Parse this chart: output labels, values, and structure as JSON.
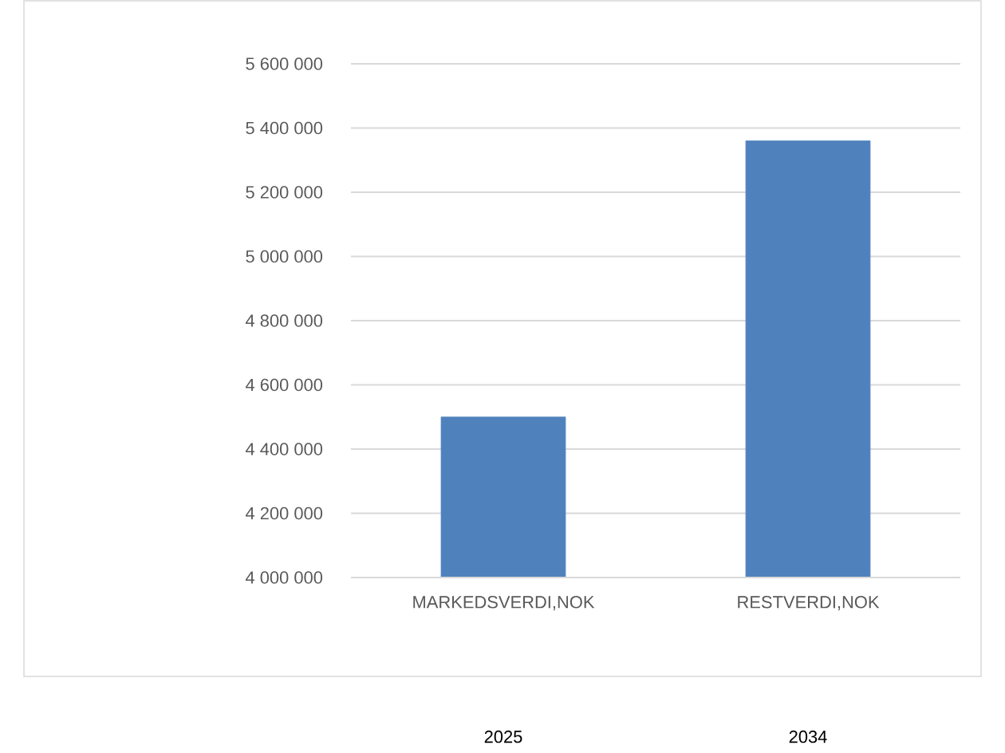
{
  "chart_data": {
    "type": "bar",
    "categories": [
      "MARKEDSVERDI,NOK",
      "RESTVERDI,NOK"
    ],
    "values": [
      4500000,
      5360000
    ],
    "color": "#4f81bd",
    "ylim": [
      4000000,
      5600000
    ],
    "yticks": [
      {
        "value": 4000000,
        "label": "4 000 000"
      },
      {
        "value": 4200000,
        "label": "4 200 000"
      },
      {
        "value": 4400000,
        "label": "4 400 000"
      },
      {
        "value": 4600000,
        "label": "4 600 000"
      },
      {
        "value": 4800000,
        "label": "4 800 000"
      },
      {
        "value": 5000000,
        "label": "5 000 000"
      },
      {
        "value": 5200000,
        "label": "5 200 000"
      },
      {
        "value": 5400000,
        "label": "5 400 000"
      },
      {
        "value": 5600000,
        "label": "5 600 000"
      }
    ],
    "grid": "y",
    "annotations": [
      "2025",
      "2034"
    ]
  }
}
